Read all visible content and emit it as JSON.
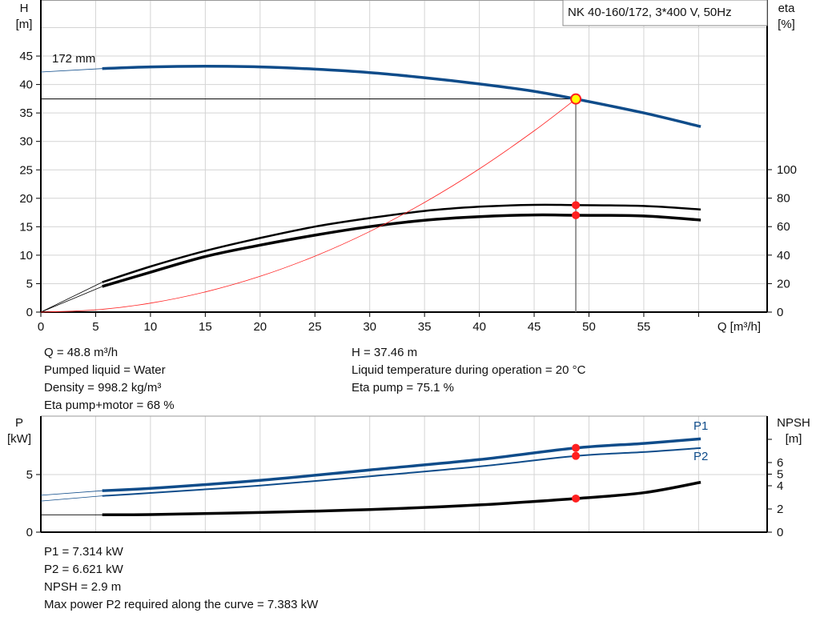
{
  "chart_data": [
    {
      "type": "line",
      "title": "NK 40-160/172, 3*400 V, 50Hz",
      "xlabel": "Q [m³/h]",
      "ylabel": "H\n[m]",
      "ylabel_left_lines": [
        "H",
        "[m]"
      ],
      "ylabel_right_lines": [
        "eta",
        "[%]"
      ],
      "xlim": [
        0,
        66
      ],
      "ylim": [
        0,
        55
      ],
      "eta_lim": [
        0,
        100
      ],
      "x_ticks": [
        0,
        5,
        10,
        15,
        20,
        25,
        30,
        35,
        40,
        45,
        50,
        55
      ],
      "y_ticks": [
        0,
        5,
        10,
        15,
        20,
        25,
        30,
        35,
        40,
        45
      ],
      "eta_ticks": [
        0,
        20,
        40,
        60,
        80,
        100
      ],
      "curve_label": "172 mm",
      "grid": true,
      "series": [
        {
          "id": "head",
          "axis": "H",
          "color": "#0f4c8a",
          "x": [
            5.6,
            10,
            15,
            20,
            25,
            30,
            35,
            40,
            45,
            48.8,
            55,
            60.2
          ],
          "y": [
            42.8,
            43.1,
            43.2,
            43.1,
            42.7,
            42.1,
            41.2,
            40.1,
            38.8,
            37.46,
            35.0,
            32.6
          ],
          "extension": {
            "x": [
              0,
              5.6
            ],
            "y": [
              42.2,
              42.8
            ]
          }
        },
        {
          "id": "eta_pump",
          "axis": "eta",
          "color": "#000000",
          "x": [
            5.6,
            10,
            15,
            20,
            25,
            30,
            35,
            40,
            45,
            48.8,
            55,
            60.2
          ],
          "y": [
            21,
            32,
            43,
            52,
            60,
            66,
            71,
            74,
            75.3,
            75.1,
            74.5,
            72
          ],
          "extension": {
            "x": [
              0,
              5.6
            ],
            "y": [
              0,
              21
            ]
          }
        },
        {
          "id": "eta_total",
          "axis": "eta",
          "color": "#000000",
          "x": [
            5.6,
            10,
            15,
            20,
            25,
            30,
            35,
            40,
            45,
            48.8,
            55,
            60.2
          ],
          "y": [
            18,
            28,
            39,
            47,
            54,
            60,
            64.5,
            67,
            68.2,
            68,
            67.5,
            64.6
          ],
          "extension": {
            "x": [
              0,
              5.6
            ],
            "y": [
              0,
              18
            ]
          }
        },
        {
          "id": "system",
          "axis": "H",
          "color": "#ff2020",
          "x": [
            0,
            5,
            10,
            15,
            20,
            25,
            30,
            35,
            40,
            45,
            48.8
          ],
          "y": [
            0,
            0.39,
            1.57,
            3.54,
            6.29,
            9.83,
            14.16,
            19.27,
            25.17,
            31.86,
            37.46
          ]
        }
      ],
      "duty_point": {
        "Q": 48.8,
        "H": 37.46,
        "eta_pump": 75.1,
        "eta_total": 68
      },
      "colors": {
        "head": "#0f4c8a",
        "system": "#ff2020",
        "point_fill": "#ffff00",
        "point_marker": "#ff2020"
      }
    },
    {
      "type": "line",
      "xlim": [
        0,
        66
      ],
      "ylabel_left_lines": [
        "P",
        "[kW]"
      ],
      "ylabel_right_lines": [
        "NPSH",
        "[m]"
      ],
      "y_ticks": [
        0,
        5
      ],
      "npsh_ticks": [
        0,
        2,
        4,
        5,
        6,
        8
      ],
      "npsh_tick_labels": [
        "0",
        "2",
        "4",
        "5",
        "6",
        ""
      ],
      "grid": true,
      "series": [
        {
          "name": "P1",
          "axis": "P",
          "color": "#0f4c8a",
          "x": [
            5.6,
            10,
            20,
            30,
            40,
            48.8,
            55,
            60.2
          ],
          "y": [
            3.6,
            3.8,
            4.5,
            5.4,
            6.3,
            7.314,
            7.7,
            8.1
          ],
          "extension": {
            "x": [
              0,
              5.6
            ],
            "y": [
              3.2,
              3.6
            ]
          }
        },
        {
          "name": "P2",
          "axis": "P",
          "color": "#0f4c8a",
          "x": [
            5.6,
            10,
            20,
            30,
            40,
            48.8,
            55,
            60.2
          ],
          "y": [
            3.15,
            3.4,
            4.05,
            4.85,
            5.7,
            6.621,
            6.95,
            7.3
          ],
          "extension": {
            "x": [
              0,
              5.6
            ],
            "y": [
              2.7,
              3.15
            ]
          }
        },
        {
          "id": "npsh",
          "axis": "NPSH",
          "color": "#000000",
          "x": [
            5.6,
            10,
            20,
            30,
            40,
            48.8,
            55,
            60.2
          ],
          "y": [
            1.5,
            1.52,
            1.7,
            1.95,
            2.35,
            2.9,
            3.4,
            4.3
          ],
          "extension": {
            "x": [
              0,
              5.6
            ],
            "y": [
              1.5,
              1.5
            ]
          }
        }
      ],
      "duty_point": {
        "Q": 48.8,
        "P1": 7.314,
        "P2": 6.621,
        "NPSH": 2.9
      }
    }
  ],
  "results_top": {
    "left": [
      "Q = 48.8 m³/h",
      "Pumped liquid = Water",
      "Density = 998.2 kg/m³",
      "Eta pump+motor = 68 %"
    ],
    "right": [
      "H = 37.46 m",
      "Liquid temperature during operation = 20 °C",
      "Eta pump = 75.1 %"
    ]
  },
  "results_bottom": [
    "P1 = 7.314 kW",
    "P2 = 6.621 kW",
    "NPSH = 2.9 m",
    "Max power P2 required along the curve = 7.383 kW"
  ]
}
